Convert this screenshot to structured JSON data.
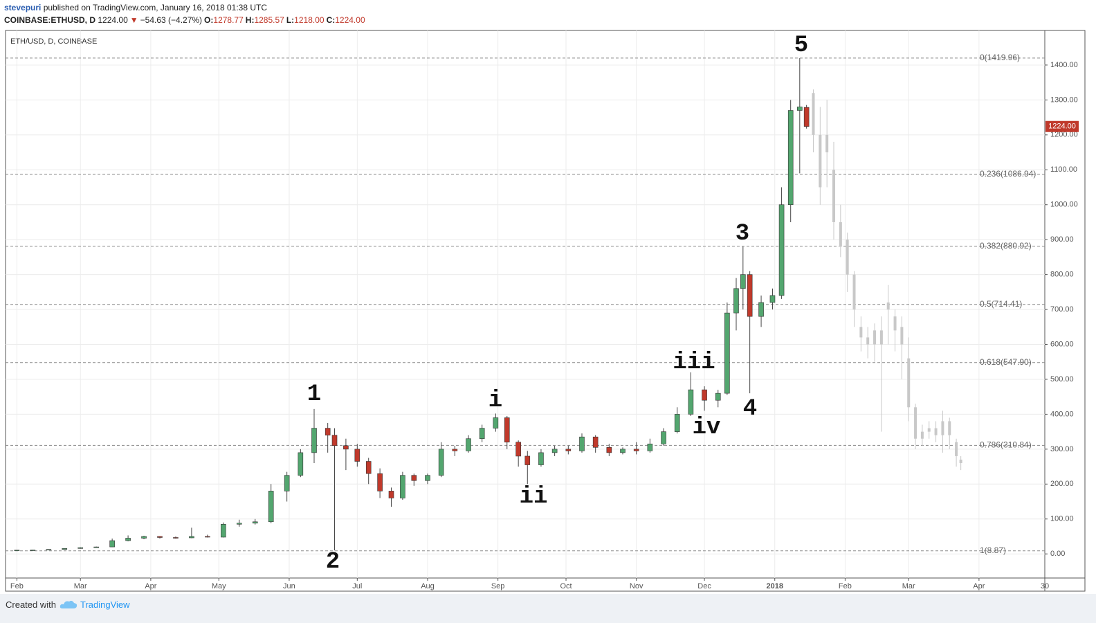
{
  "header": {
    "author": "stevepuri",
    "published": "published on TradingView.com, January 16, 2018 01:38 UTC",
    "symbol": "COINBASE:ETHUSD, D",
    "price": "1224.00",
    "change_arrow": "▼",
    "change": "−54.63 (−4.27%)",
    "open_label": "O:",
    "open": "1278.77",
    "high_label": "H:",
    "high": "1285.57",
    "low_label": "L:",
    "low": "1218.00",
    "close_label": "C:",
    "close": "1224.00"
  },
  "chart_data": {
    "type": "candlestick",
    "title": "ETH/USD, D, COINBASE",
    "up_color": "#53a66f",
    "down_color": "#c0392b",
    "x": [
      5,
      12,
      19,
      26,
      33,
      40,
      47,
      54,
      61,
      68,
      75,
      82,
      89,
      96,
      103,
      110,
      117,
      124,
      130,
      136,
      142,
      145,
      150,
      155,
      160,
      165,
      170,
      175,
      180,
      186,
      192,
      198,
      204,
      210,
      216,
      221,
      226,
      230,
      236,
      242,
      248,
      254,
      260,
      266,
      272,
      278,
      284,
      290,
      296,
      302,
      308,
      314,
      318,
      322,
      325,
      328,
      333,
      338,
      342,
      346,
      350,
      353
    ],
    "open": [
      10.7,
      11,
      11.3,
      12.9,
      15.6,
      18,
      20,
      38,
      45,
      50,
      47,
      46,
      50,
      48,
      85,
      88,
      92,
      180,
      225,
      290,
      360,
      340,
      310,
      300,
      265,
      230,
      180,
      160,
      225,
      210,
      225,
      300,
      295,
      330,
      360,
      390,
      320,
      280,
      255,
      290,
      300,
      295,
      335,
      305,
      290,
      300,
      295,
      315,
      350,
      400,
      470,
      440,
      460,
      690,
      760,
      800,
      680,
      720,
      740,
      1000,
      1270,
      1278.77
    ],
    "high": [
      11,
      11.6,
      13,
      16,
      19,
      21,
      44,
      53,
      52,
      51,
      50,
      75,
      55,
      90,
      98,
      100,
      200,
      235,
      300,
      415,
      375,
      360,
      330,
      315,
      275,
      245,
      190,
      235,
      230,
      230,
      320,
      310,
      340,
      370,
      402,
      395,
      325,
      295,
      300,
      310,
      310,
      345,
      340,
      315,
      305,
      320,
      330,
      360,
      420,
      520,
      480,
      470,
      720,
      790,
      880,
      810,
      740,
      760,
      1050,
      1300,
      1420,
      1285.57
    ],
    "low": [
      10.5,
      10.9,
      11,
      12.5,
      15,
      17.5,
      19.5,
      36,
      42,
      44,
      44,
      45,
      47,
      47,
      78,
      84,
      88,
      150,
      220,
      260,
      290,
      10,
      240,
      250,
      200,
      160,
      135,
      155,
      195,
      200,
      220,
      280,
      290,
      320,
      350,
      300,
      250,
      200,
      250,
      280,
      285,
      290,
      290,
      280,
      285,
      285,
      290,
      310,
      345,
      395,
      410,
      420,
      455,
      640,
      700,
      460,
      650,
      700,
      730,
      950,
      1090,
      1218
    ],
    "close": [
      11,
      11.3,
      12.9,
      15.6,
      18,
      20,
      38,
      45,
      50,
      47,
      46,
      50,
      48,
      85,
      88,
      92,
      180,
      225,
      290,
      360,
      340,
      310,
      300,
      265,
      230,
      180,
      160,
      225,
      210,
      225,
      300,
      295,
      330,
      360,
      390,
      320,
      280,
      255,
      290,
      300,
      295,
      335,
      305,
      290,
      300,
      295,
      315,
      350,
      400,
      470,
      440,
      460,
      690,
      760,
      800,
      680,
      720,
      740,
      1000,
      1270,
      1280,
      1224
    ],
    "projection": {
      "color": "#c8c8c8",
      "x": [
        356,
        359,
        362,
        365,
        368,
        371,
        374,
        377,
        380,
        383,
        386,
        389,
        392,
        395,
        398,
        401,
        404,
        407,
        410,
        413,
        416,
        419,
        421
      ],
      "open": [
        1320,
        1200,
        1150,
        1100,
        950,
        900,
        800,
        650,
        620,
        600,
        640,
        700,
        680,
        650,
        560,
        420,
        330,
        350,
        360,
        340,
        380,
        320,
        270
      ],
      "high": [
        1330,
        1280,
        1300,
        1180,
        1000,
        920,
        810,
        680,
        650,
        660,
        680,
        770,
        700,
        680,
        620,
        430,
        370,
        380,
        380,
        410,
        390,
        330,
        280
      ],
      "low": [
        1150,
        1000,
        1050,
        900,
        850,
        750,
        650,
        580,
        560,
        550,
        350,
        600,
        580,
        500,
        380,
        300,
        310,
        330,
        320,
        290,
        300,
        250,
        240
      ],
      "close": [
        1200,
        1050,
        1200,
        950,
        880,
        800,
        700,
        620,
        600,
        640,
        600,
        720,
        640,
        600,
        420,
        330,
        350,
        360,
        340,
        380,
        340,
        280,
        260
      ]
    },
    "fib_levels": [
      {
        "value": 1419.96,
        "label": "0(1419.96)"
      },
      {
        "value": 1086.94,
        "label": "0.236(1086.94)"
      },
      {
        "value": 880.92,
        "label": "0.382(880.92)"
      },
      {
        "value": 714.41,
        "label": "0.5(714.41)"
      },
      {
        "value": 547.9,
        "label": "0.618(547.90)"
      },
      {
        "value": 310.84,
        "label": "0.786(310.84)"
      },
      {
        "value": 8.87,
        "label": "1(8.87)"
      }
    ],
    "annotations": [
      "5",
      "3",
      "1",
      "i",
      "iii",
      "iv",
      "4",
      "ii",
      "2"
    ],
    "last_price_label": "1224.00",
    "xlim": [
      0,
      458
    ],
    "ylim": [
      -69,
      1499
    ],
    "xticks": [
      {
        "value": 5,
        "label": "Feb"
      },
      {
        "value": 33,
        "label": "Mar"
      },
      {
        "value": 64,
        "label": "Apr"
      },
      {
        "value": 94,
        "label": "May"
      },
      {
        "value": 125,
        "label": "Jun"
      },
      {
        "value": 155,
        "label": "Jul"
      },
      {
        "value": 186,
        "label": "Aug"
      },
      {
        "value": 217,
        "label": "Sep"
      },
      {
        "value": 247,
        "label": "Oct"
      },
      {
        "value": 278,
        "label": "Nov"
      },
      {
        "value": 308,
        "label": "Dec"
      },
      {
        "value": 339,
        "label": "2018"
      },
      {
        "value": 370,
        "label": "Feb"
      },
      {
        "value": 398,
        "label": "Mar"
      },
      {
        "value": 429,
        "label": "Apr"
      },
      {
        "value": 458,
        "label": "30"
      }
    ],
    "yticks": [
      {
        "value": 0,
        "label": "0.00"
      },
      {
        "value": 100,
        "label": "100.00"
      },
      {
        "value": 200,
        "label": "200.00"
      },
      {
        "value": 300,
        "label": "300.00"
      },
      {
        "value": 400,
        "label": "400.00"
      },
      {
        "value": 500,
        "label": "500.00"
      },
      {
        "value": 600,
        "label": "600.00"
      },
      {
        "value": 700,
        "label": "700.00"
      },
      {
        "value": 800,
        "label": "800.00"
      },
      {
        "value": 900,
        "label": "900.00"
      },
      {
        "value": 1000,
        "label": "1000.00"
      },
      {
        "value": 1100,
        "label": "1100.00"
      },
      {
        "value": 1200,
        "label": "1200.00"
      },
      {
        "value": 1300,
        "label": "1300.00"
      },
      {
        "value": 1400,
        "label": "1400.00"
      }
    ],
    "grid": true
  },
  "footer": {
    "created_with": "Created with",
    "brand": "TradingView"
  }
}
